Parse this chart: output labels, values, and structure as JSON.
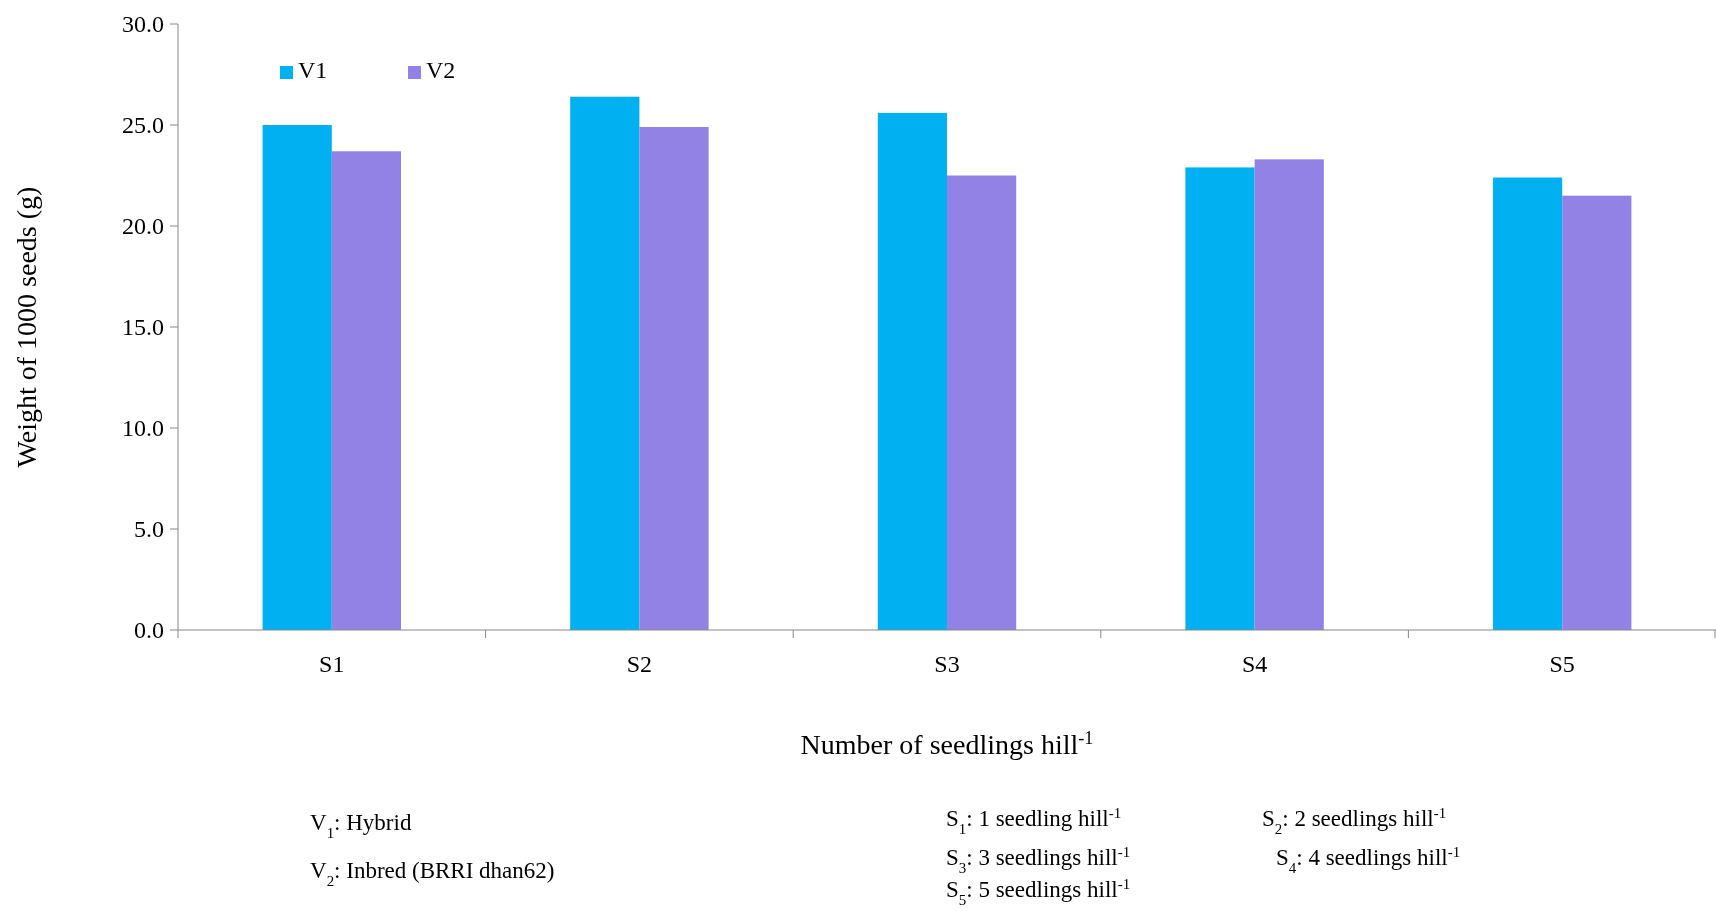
{
  "chart_data": {
    "type": "bar",
    "xlabel": "Number of seedlings hill$^{-1}$",
    "ylabel": "Weight of 1000 seeds (g)",
    "categories": [
      "S1",
      "S2",
      "S3",
      "S4",
      "S5"
    ],
    "series": [
      {
        "name": "V1",
        "color": "#00b0f0",
        "values": [
          25.0,
          26.4,
          25.6,
          22.9,
          22.4
        ]
      },
      {
        "name": "V2",
        "color": "#9382e6",
        "values": [
          23.7,
          24.9,
          22.5,
          23.3,
          21.5
        ]
      }
    ],
    "ylim": [
      0,
      30
    ],
    "yticks": [
      {
        "value": 0,
        "label": "0.0"
      },
      {
        "value": 5,
        "label": "5.0"
      },
      {
        "value": 10,
        "label": "10.0"
      },
      {
        "value": 15,
        "label": "15.0"
      },
      {
        "value": 20,
        "label": "20.0"
      },
      {
        "value": 25,
        "label": "25.0"
      },
      {
        "value": 30,
        "label": "30.0"
      }
    ],
    "grid": false,
    "legend": "top left",
    "annotations": [
      "V$_{1}$: Hybrid",
      "V$_{2}$: Inbred (BRRI dhan62)",
      "S$_{1}$: 1 seedling hill$^{-1}$",
      "S$_{2}$: 2 seedlings hill$^{-1}$",
      "S$_{3}$: 3 seedlings hill$^{-1}$",
      "S$_{4}$: 4 seedlings hill$^{-1}$",
      "S$_{5}$: 5 seedlings hill$^{-1}$"
    ]
  }
}
